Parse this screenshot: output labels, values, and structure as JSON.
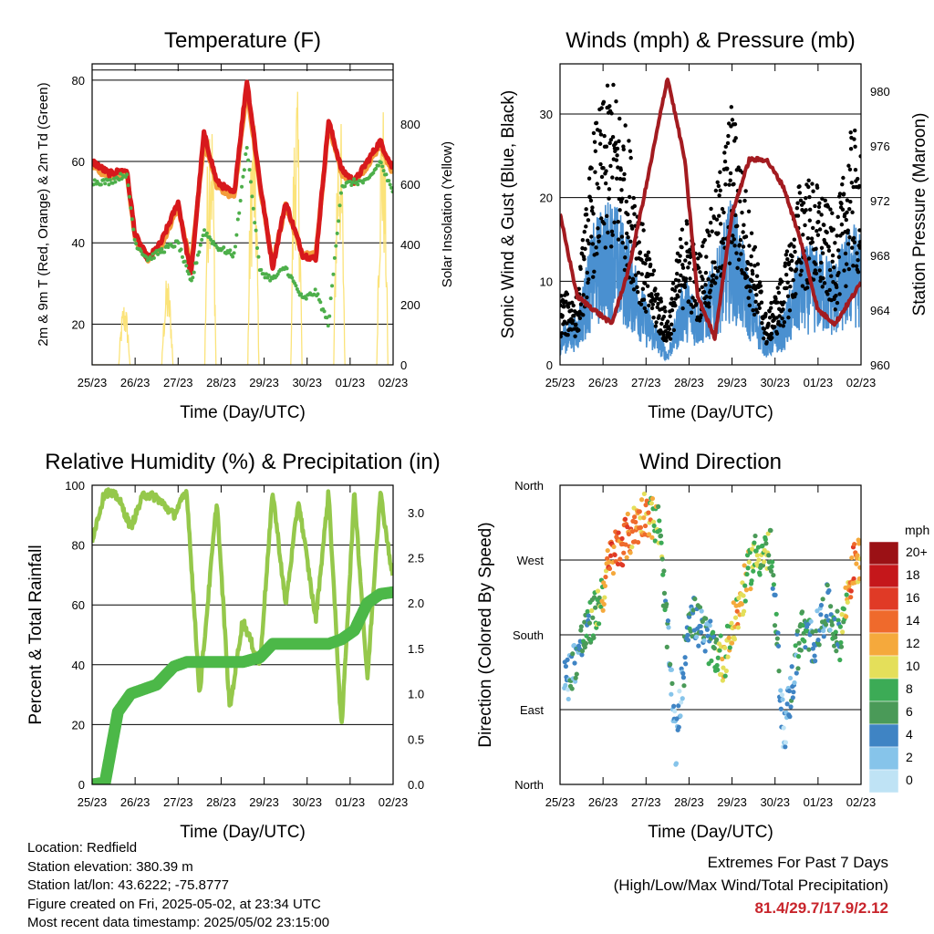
{
  "panels": {
    "temperature": {
      "title": "Temperature (F)",
      "ylabel": "2m & 9m T (Red, Orange) & 2m Td (Green)",
      "y2label": "Solar Insolation (Yellow)",
      "xlabel": "Time (Day/UTC)"
    },
    "winds": {
      "title": "Winds (mph) & Pressure (mb)",
      "ylabel": "Sonic Wind & Gust (Blue, Black)",
      "y2label": "Station Pressure (Maroon)",
      "xlabel": "Time (Day/UTC)"
    },
    "humidity": {
      "title": "Relative Humidity (%) & Precipitation (in)",
      "ylabel": "Percent & Total Rainfall",
      "xlabel": "Time (Day/UTC)"
    },
    "direction": {
      "title": "Wind Direction",
      "ylabel": "Direction (Colored By Speed)",
      "xlabel": "Time (Day/UTC)",
      "legend_title": "mph"
    }
  },
  "info": {
    "location": "Location: Redfield",
    "elevation": "Station elevation: 380.39 m",
    "latlon": "Station lat/lon: 43.6222; -75.8777",
    "created": "Figure created on Fri, 2025-05-02, at 23:34 UTC",
    "recent": "Most recent data timestamp: 2025/05/02 23:15:00"
  },
  "extremes": {
    "title": "Extremes For Past 7 Days",
    "subtitle": "(High/Low/Max Wind/Total Precipitation)",
    "values": "81.4/29.7/17.9/2.12"
  },
  "colors": {
    "temp2m": "#d7191c",
    "temp9m": "#f39c3a",
    "dewpoint": "#4daf4a",
    "solar": "#fbe37a",
    "wind": "#4a90d0",
    "gust": "#000000",
    "pressure": "#a31b20",
    "rh": "#95c84b",
    "precip": "#4cb848"
  },
  "chart_data": [
    {
      "type": "line",
      "title": "Temperature (F)",
      "x_ticks": [
        "25/23",
        "26/23",
        "27/23",
        "28/23",
        "29/23",
        "30/23",
        "01/23",
        "02/23"
      ],
      "ylim": [
        10,
        84
      ],
      "y_ticks": [
        20,
        40,
        60,
        80
      ],
      "y2lim": [
        0,
        1000
      ],
      "y2_ticks": [
        0,
        200,
        400,
        600,
        800
      ],
      "x_days": [
        0,
        0.4,
        0.8,
        1.0,
        1.3,
        1.6,
        2.0,
        2.3,
        2.6,
        2.9,
        3.3,
        3.6,
        3.9,
        4.2,
        4.5,
        4.9,
        5.2,
        5.5,
        5.8,
        6.1,
        6.4,
        6.7,
        7.0
      ],
      "series": [
        {
          "name": "2m T",
          "values": [
            60,
            57,
            58,
            42,
            36,
            40,
            50,
            32,
            67,
            55,
            52,
            80,
            55,
            34,
            50,
            37,
            36,
            70,
            58,
            55,
            60,
            65,
            58
          ]
        },
        {
          "name": "9m T",
          "values": [
            59,
            56,
            57,
            41,
            36,
            39,
            49,
            34,
            65,
            54,
            51,
            78,
            54,
            35,
            49,
            37,
            37,
            69,
            57,
            55,
            59,
            64,
            57
          ]
        },
        {
          "name": "2m Td",
          "values": [
            55,
            55,
            57,
            40,
            36,
            38,
            40,
            30,
            43,
            39,
            37,
            64,
            33,
            31,
            34,
            26,
            28,
            20,
            54,
            55,
            55,
            60,
            52
          ]
        },
        {
          "name": "Solar Insolation",
          "peaks_days": [
            0.75,
            1.75,
            2.75,
            3.75,
            4.75,
            5.75,
            6.75
          ],
          "peak_values": [
            220,
            300,
            960,
            880,
            960,
            900,
            900
          ]
        }
      ]
    },
    {
      "type": "scatter",
      "title": "Winds (mph) & Pressure (mb)",
      "x_ticks": [
        "25/23",
        "26/23",
        "27/23",
        "28/23",
        "29/23",
        "30/23",
        "01/23",
        "02/23"
      ],
      "ylim": [
        0,
        36
      ],
      "y_ticks": [
        0,
        10,
        20,
        30
      ],
      "y2lim": [
        960,
        982
      ],
      "y2_ticks": [
        960,
        964,
        968,
        972,
        976,
        980
      ],
      "x_days": [
        0,
        0.4,
        0.8,
        1.2,
        1.6,
        2.0,
        2.5,
        2.9,
        3.2,
        3.6,
        4.0,
        4.4,
        4.8,
        5.2,
        5.6,
        6.0,
        6.4,
        6.8,
        7.0
      ],
      "series": [
        {
          "name": "Wind",
          "values": [
            3,
            4,
            11,
            13,
            10,
            5,
            1,
            7,
            5,
            8,
            13,
            7,
            2,
            4,
            9,
            9,
            8,
            11,
            10
          ]
        },
        {
          "name": "Gust",
          "values": [
            6,
            6,
            20,
            24,
            19,
            10,
            4,
            13,
            9,
            14,
            22,
            13,
            4,
            8,
            16,
            15,
            12,
            20,
            18
          ]
        },
        {
          "name": "Pressure",
          "values": [
            971,
            965,
            964,
            963,
            967,
            973,
            981,
            975,
            965,
            962,
            971,
            975,
            975,
            973,
            969,
            964,
            963,
            965,
            966
          ]
        }
      ]
    },
    {
      "type": "line",
      "title": "Relative Humidity (%) & Precipitation (in)",
      "x_ticks": [
        "25/23",
        "26/23",
        "27/23",
        "28/23",
        "29/23",
        "30/23",
        "01/23",
        "02/23"
      ],
      "ylim": [
        0,
        100
      ],
      "y_ticks": [
        0,
        20,
        40,
        60,
        80,
        100
      ],
      "y2lim": [
        0,
        3.3
      ],
      "y2_ticks": [
        "0.0",
        "0.5",
        "1.0",
        "1.5",
        "2.0",
        "2.5",
        "3.0"
      ],
      "x_days": [
        0,
        0.3,
        0.6,
        0.9,
        1.2,
        1.5,
        1.9,
        2.2,
        2.5,
        2.9,
        3.2,
        3.5,
        3.9,
        4.2,
        4.5,
        4.8,
        5.2,
        5.5,
        5.8,
        6.1,
        6.4,
        6.7,
        7.0
      ],
      "series": [
        {
          "name": "Relative Humidity",
          "values": [
            82,
            98,
            96,
            86,
            97,
            96,
            90,
            98,
            30,
            95,
            25,
            55,
            40,
            98,
            60,
            95,
            55,
            98,
            18,
            98,
            35,
            98,
            68
          ]
        },
        {
          "name": "Total Precipitation",
          "values": [
            0.0,
            0.02,
            0.8,
            1.0,
            1.05,
            1.1,
            1.3,
            1.35,
            1.35,
            1.35,
            1.35,
            1.35,
            1.4,
            1.55,
            1.55,
            1.55,
            1.55,
            1.55,
            1.6,
            1.7,
            2.0,
            2.1,
            2.12
          ]
        }
      ]
    },
    {
      "type": "scatter",
      "title": "Wind Direction",
      "x_ticks": [
        "25/23",
        "26/23",
        "27/23",
        "28/23",
        "29/23",
        "30/23",
        "01/23",
        "02/23"
      ],
      "y_ticks": [
        "North",
        "East",
        "South",
        "West",
        "North"
      ],
      "ylim": [
        0,
        360
      ],
      "x_days": [
        0.2,
        0.5,
        0.9,
        1.2,
        1.6,
        2.0,
        2.3,
        2.7,
        3.0,
        3.4,
        3.8,
        4.2,
        4.5,
        4.9,
        5.2,
        5.6,
        5.9,
        6.2,
        6.5,
        6.8,
        6.95
      ],
      "series": [
        {
          "name": "Direction",
          "values": [
            130,
            170,
            215,
            275,
            300,
            330,
            310,
            45,
            210,
            175,
            150,
            220,
            275,
            280,
            60,
            185,
            170,
            215,
            175,
            260,
            270
          ]
        },
        {
          "name": "Speed",
          "values": [
            3,
            6,
            8,
            15,
            13,
            12,
            9,
            2,
            5,
            4,
            10,
            11,
            9,
            8,
            2,
            6,
            5,
            4,
            6,
            14,
            12
          ]
        }
      ],
      "legend": {
        "title": "mph",
        "labels": [
          "20+",
          "18",
          "16",
          "14",
          "12",
          "10",
          "8",
          "6",
          "4",
          "2",
          "0"
        ]
      }
    }
  ]
}
